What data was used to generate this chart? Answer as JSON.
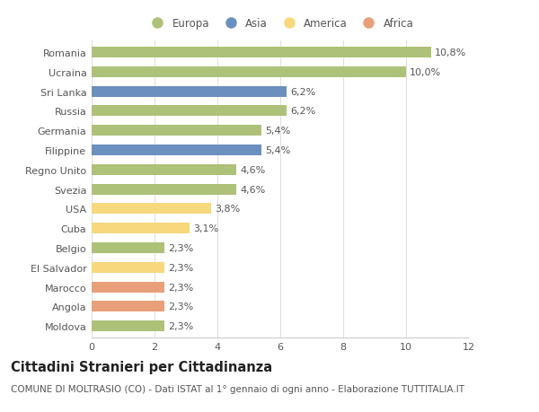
{
  "countries": [
    "Romania",
    "Ucraina",
    "Sri Lanka",
    "Russia",
    "Germania",
    "Filippine",
    "Regno Unito",
    "Svezia",
    "USA",
    "Cuba",
    "Belgio",
    "El Salvador",
    "Marocco",
    "Angola",
    "Moldova"
  ],
  "values": [
    10.8,
    10.0,
    6.2,
    6.2,
    5.4,
    5.4,
    4.6,
    4.6,
    3.8,
    3.1,
    2.3,
    2.3,
    2.3,
    2.3,
    2.3
  ],
  "labels": [
    "10,8%",
    "10,0%",
    "6,2%",
    "6,2%",
    "5,4%",
    "5,4%",
    "4,6%",
    "4,6%",
    "3,8%",
    "3,1%",
    "2,3%",
    "2,3%",
    "2,3%",
    "2,3%",
    "2,3%"
  ],
  "continents": [
    "Europa",
    "Europa",
    "Asia",
    "Europa",
    "Europa",
    "Asia",
    "Europa",
    "Europa",
    "America",
    "America",
    "Europa",
    "America",
    "Africa",
    "Africa",
    "Europa"
  ],
  "colors": {
    "Europa": "#adc178",
    "Asia": "#6b8fbe",
    "America": "#f7d87c",
    "Africa": "#e8a07a"
  },
  "title": "Cittadini Stranieri per Cittadinanza",
  "subtitle": "COMUNE DI MOLTRASIO (CO) - Dati ISTAT al 1° gennaio di ogni anno - Elaborazione TUTTITALIA.IT",
  "xlim": [
    0,
    12
  ],
  "xticks": [
    0,
    2,
    4,
    6,
    8,
    10,
    12
  ],
  "background_color": "#ffffff",
  "bar_height": 0.55,
  "label_fontsize": 8,
  "tick_fontsize": 8,
  "title_fontsize": 10.5,
  "subtitle_fontsize": 7.5,
  "legend_order": [
    "Europa",
    "Asia",
    "America",
    "Africa"
  ]
}
